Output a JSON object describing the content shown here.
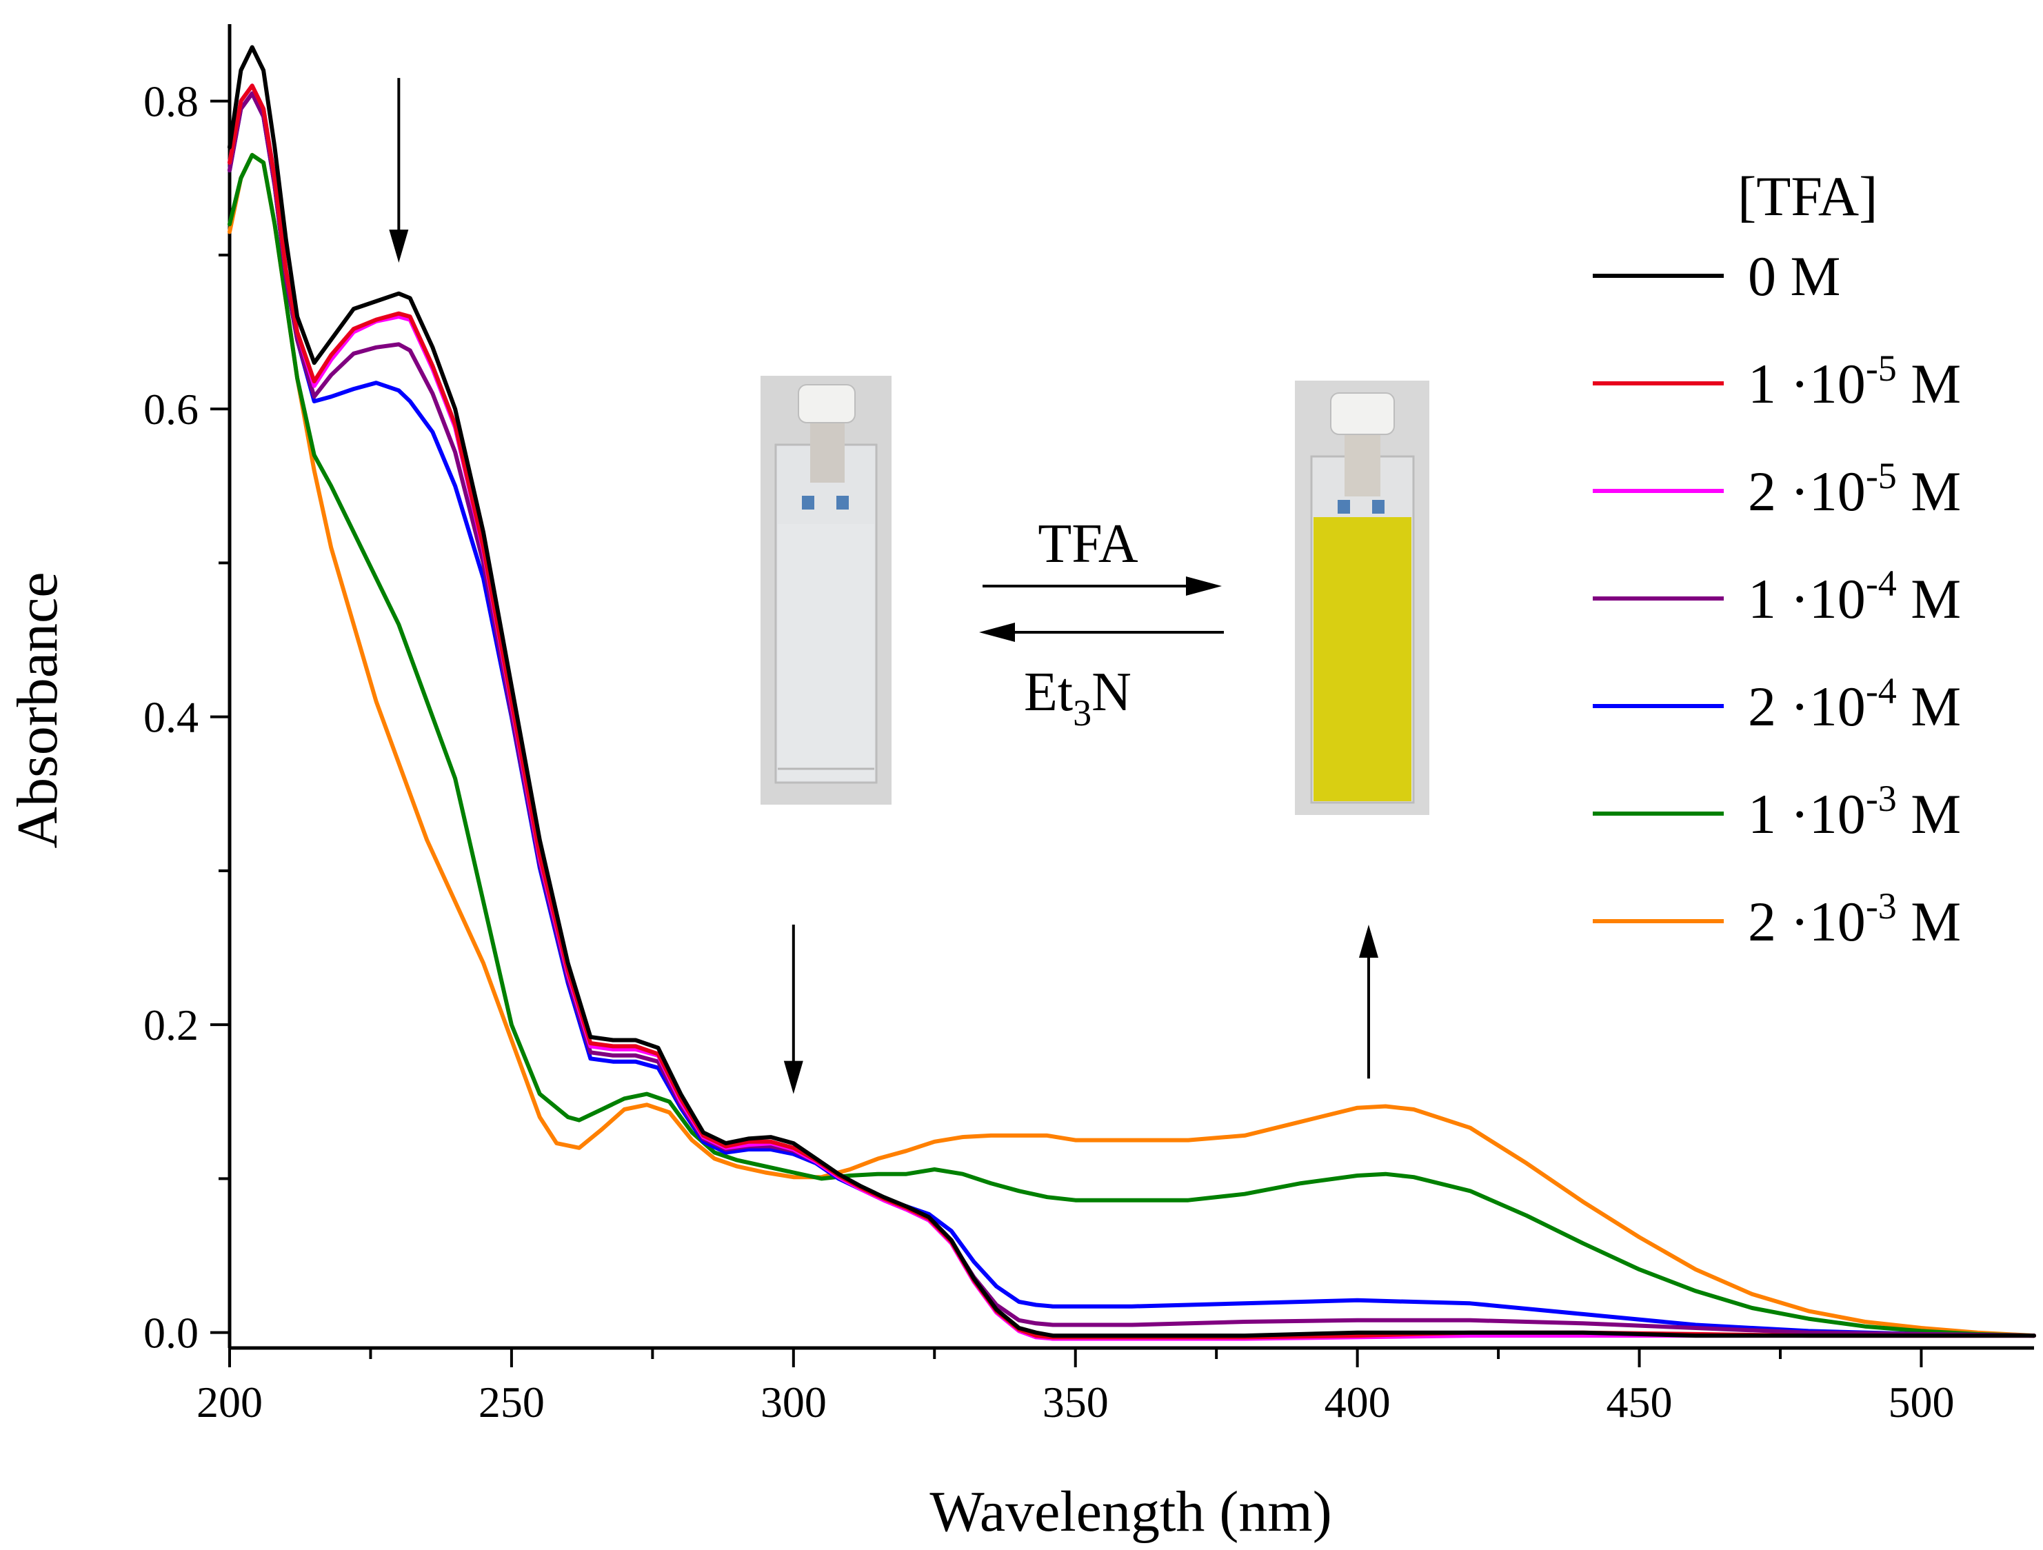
{
  "chart_data": {
    "type": "line",
    "title": "",
    "xlabel": "Wavelength (nm)",
    "ylabel": "Absorbance",
    "xlim": [
      200,
      520
    ],
    "ylim": [
      -0.01,
      0.85
    ],
    "xticks": [
      200,
      250,
      300,
      350,
      400,
      450,
      500
    ],
    "xtick_labels": [
      "200",
      "250",
      "300",
      "350",
      "400",
      "450",
      "500"
    ],
    "yticks": [
      0.0,
      0.2,
      0.4,
      0.6,
      0.8
    ],
    "ytick_labels": [
      "0.0",
      "0.2",
      "0.4",
      "0.6",
      "0.8"
    ],
    "legend": {
      "title": "[TFA]",
      "position": "right"
    },
    "series": [
      {
        "name": "0 M",
        "label_main": "0 M",
        "label_exp": "",
        "label_unit": "",
        "color": "#000000",
        "x": [
          200,
          202,
          204,
          206,
          208,
          210,
          212,
          215,
          218,
          222,
          226,
          230,
          232,
          236,
          240,
          245,
          250,
          255,
          260,
          264,
          268,
          272,
          276,
          280,
          284,
          288,
          292,
          296,
          300,
          304,
          308,
          312,
          316,
          320,
          324,
          328,
          332,
          336,
          340,
          343,
          346,
          350,
          360,
          380,
          400,
          420,
          440,
          460,
          480,
          500,
          520
        ],
        "y": [
          0.77,
          0.82,
          0.835,
          0.82,
          0.77,
          0.71,
          0.66,
          0.63,
          0.645,
          0.665,
          0.67,
          0.675,
          0.672,
          0.64,
          0.6,
          0.52,
          0.42,
          0.32,
          0.24,
          0.192,
          0.19,
          0.19,
          0.185,
          0.155,
          0.13,
          0.123,
          0.126,
          0.127,
          0.123,
          0.113,
          0.103,
          0.095,
          0.088,
          0.082,
          0.075,
          0.06,
          0.035,
          0.015,
          0.003,
          0.0,
          -0.002,
          -0.002,
          -0.002,
          -0.002,
          0.0,
          0.0,
          0.0,
          -0.002,
          -0.002,
          -0.002,
          -0.002
        ]
      },
      {
        "name": "1 ·10-5 M",
        "label_main": "1 ·10",
        "label_exp": "-5",
        "label_unit": " M",
        "color": "#e8001c",
        "x": [
          200,
          202,
          204,
          206,
          208,
          210,
          212,
          215,
          218,
          222,
          226,
          230,
          232,
          236,
          240,
          245,
          250,
          255,
          260,
          264,
          268,
          272,
          276,
          280,
          284,
          288,
          292,
          296,
          300,
          304,
          308,
          312,
          316,
          320,
          324,
          328,
          332,
          336,
          340,
          343,
          346,
          350,
          360,
          380,
          400,
          420,
          440,
          460,
          480,
          500,
          520
        ],
        "y": [
          0.76,
          0.8,
          0.81,
          0.795,
          0.75,
          0.69,
          0.65,
          0.618,
          0.635,
          0.652,
          0.658,
          0.662,
          0.66,
          0.628,
          0.59,
          0.51,
          0.41,
          0.31,
          0.235,
          0.188,
          0.186,
          0.186,
          0.181,
          0.152,
          0.128,
          0.121,
          0.124,
          0.124,
          0.12,
          0.112,
          0.102,
          0.094,
          0.087,
          0.081,
          0.074,
          0.059,
          0.034,
          0.014,
          0.002,
          -0.002,
          -0.003,
          -0.003,
          -0.003,
          -0.003,
          -0.002,
          0.0,
          0.0,
          -0.001,
          -0.002,
          -0.002,
          -0.002
        ]
      },
      {
        "name": "2 ·10-5 M",
        "label_main": "2 ·10",
        "label_exp": "-5",
        "label_unit": " M",
        "color": "#ff00ff",
        "x": [
          200,
          202,
          204,
          206,
          208,
          210,
          212,
          215,
          218,
          222,
          226,
          230,
          232,
          236,
          240,
          245,
          250,
          255,
          260,
          264,
          268,
          272,
          276,
          280,
          284,
          288,
          292,
          296,
          300,
          304,
          308,
          312,
          316,
          320,
          324,
          328,
          332,
          336,
          340,
          343,
          346,
          350,
          360,
          380,
          400,
          420,
          440,
          460,
          480,
          500,
          520
        ],
        "y": [
          0.76,
          0.8,
          0.81,
          0.795,
          0.75,
          0.69,
          0.65,
          0.615,
          0.632,
          0.65,
          0.657,
          0.66,
          0.658,
          0.626,
          0.588,
          0.508,
          0.408,
          0.308,
          0.233,
          0.186,
          0.184,
          0.184,
          0.18,
          0.15,
          0.127,
          0.12,
          0.122,
          0.123,
          0.119,
          0.111,
          0.101,
          0.093,
          0.086,
          0.08,
          0.073,
          0.058,
          0.033,
          0.013,
          0.001,
          -0.003,
          -0.004,
          -0.004,
          -0.004,
          -0.004,
          -0.003,
          -0.002,
          -0.002,
          -0.002,
          -0.002,
          -0.002,
          -0.002
        ]
      },
      {
        "name": "1 ·10-4 M",
        "label_main": "1 ·10",
        "label_exp": "-4",
        "label_unit": " M",
        "color": "#800080",
        "x": [
          200,
          202,
          204,
          206,
          208,
          210,
          212,
          215,
          218,
          222,
          226,
          230,
          232,
          236,
          240,
          245,
          250,
          255,
          260,
          264,
          268,
          272,
          276,
          280,
          284,
          288,
          292,
          296,
          300,
          304,
          308,
          312,
          316,
          320,
          324,
          328,
          332,
          336,
          340,
          343,
          346,
          350,
          360,
          380,
          400,
          420,
          440,
          460,
          480,
          500,
          520
        ],
        "y": [
          0.755,
          0.795,
          0.805,
          0.79,
          0.745,
          0.685,
          0.645,
          0.608,
          0.622,
          0.636,
          0.64,
          0.642,
          0.638,
          0.61,
          0.572,
          0.5,
          0.402,
          0.305,
          0.23,
          0.182,
          0.18,
          0.18,
          0.176,
          0.148,
          0.126,
          0.119,
          0.121,
          0.121,
          0.118,
          0.111,
          0.101,
          0.093,
          0.086,
          0.08,
          0.073,
          0.059,
          0.036,
          0.018,
          0.008,
          0.006,
          0.005,
          0.005,
          0.005,
          0.007,
          0.008,
          0.008,
          0.006,
          0.003,
          0.0,
          -0.001,
          -0.002
        ]
      },
      {
        "name": "2 ·10-4 M",
        "label_main": "2 ·10",
        "label_exp": "-4",
        "label_unit": " M",
        "color": "#0000ff",
        "x": [
          200,
          202,
          204,
          206,
          208,
          210,
          212,
          215,
          218,
          222,
          226,
          230,
          232,
          236,
          240,
          245,
          250,
          255,
          260,
          264,
          268,
          272,
          276,
          280,
          284,
          288,
          292,
          296,
          300,
          304,
          308,
          312,
          316,
          320,
          324,
          328,
          332,
          336,
          340,
          343,
          346,
          350,
          360,
          380,
          400,
          420,
          440,
          460,
          480,
          500,
          520
        ],
        "y": [
          0.755,
          0.795,
          0.805,
          0.79,
          0.745,
          0.685,
          0.645,
          0.605,
          0.608,
          0.613,
          0.617,
          0.612,
          0.605,
          0.585,
          0.55,
          0.49,
          0.4,
          0.302,
          0.227,
          0.178,
          0.176,
          0.176,
          0.172,
          0.146,
          0.124,
          0.117,
          0.119,
          0.119,
          0.116,
          0.11,
          0.1,
          0.093,
          0.087,
          0.082,
          0.077,
          0.066,
          0.046,
          0.03,
          0.02,
          0.018,
          0.017,
          0.017,
          0.017,
          0.019,
          0.021,
          0.019,
          0.012,
          0.005,
          0.001,
          -0.001,
          -0.002
        ]
      },
      {
        "name": "1 ·10-3 M",
        "label_main": "1 ·10",
        "label_exp": "-3",
        "label_unit": " M",
        "color": "#008000",
        "x": [
          200,
          202,
          204,
          206,
          208,
          210,
          212,
          215,
          218,
          222,
          226,
          230,
          235,
          240,
          245,
          250,
          255,
          260,
          262,
          266,
          270,
          274,
          278,
          282,
          286,
          290,
          295,
          300,
          305,
          310,
          315,
          320,
          325,
          330,
          335,
          340,
          345,
          350,
          355,
          360,
          370,
          380,
          390,
          400,
          405,
          410,
          420,
          430,
          440,
          450,
          460,
          470,
          480,
          490,
          500,
          510,
          520
        ],
        "y": [
          0.72,
          0.75,
          0.765,
          0.76,
          0.72,
          0.67,
          0.62,
          0.57,
          0.55,
          0.52,
          0.49,
          0.46,
          0.41,
          0.36,
          0.28,
          0.2,
          0.155,
          0.14,
          0.138,
          0.145,
          0.152,
          0.155,
          0.15,
          0.13,
          0.117,
          0.112,
          0.108,
          0.104,
          0.1,
          0.102,
          0.103,
          0.103,
          0.106,
          0.103,
          0.097,
          0.092,
          0.088,
          0.086,
          0.086,
          0.086,
          0.086,
          0.09,
          0.097,
          0.102,
          0.103,
          0.101,
          0.092,
          0.076,
          0.058,
          0.041,
          0.027,
          0.016,
          0.009,
          0.004,
          0.001,
          -0.001,
          -0.002
        ]
      },
      {
        "name": "2 ·10-3 M",
        "label_main": "2 ·10",
        "label_exp": "-3",
        "label_unit": " M",
        "color": "#ff8000",
        "x": [
          200,
          202,
          204,
          206,
          208,
          210,
          212,
          215,
          218,
          222,
          226,
          230,
          235,
          240,
          245,
          250,
          255,
          258,
          262,
          266,
          270,
          274,
          278,
          282,
          286,
          290,
          295,
          300,
          305,
          310,
          315,
          320,
          325,
          330,
          335,
          340,
          345,
          350,
          360,
          370,
          380,
          390,
          400,
          405,
          410,
          420,
          430,
          440,
          450,
          460,
          470,
          480,
          490,
          500,
          510,
          520
        ],
        "y": [
          0.715,
          0.75,
          0.765,
          0.76,
          0.72,
          0.67,
          0.62,
          0.56,
          0.51,
          0.46,
          0.41,
          0.37,
          0.32,
          0.28,
          0.24,
          0.19,
          0.14,
          0.123,
          0.12,
          0.132,
          0.145,
          0.148,
          0.143,
          0.125,
          0.113,
          0.108,
          0.104,
          0.101,
          0.101,
          0.106,
          0.113,
          0.118,
          0.124,
          0.127,
          0.128,
          0.128,
          0.128,
          0.125,
          0.125,
          0.125,
          0.128,
          0.137,
          0.146,
          0.147,
          0.145,
          0.133,
          0.11,
          0.085,
          0.062,
          0.041,
          0.025,
          0.014,
          0.007,
          0.003,
          0.0,
          -0.002
        ]
      }
    ],
    "annotations": {
      "arrows": [
        {
          "x": 230,
          "y_from": 0.815,
          "y_to": 0.695,
          "direction": "down"
        },
        {
          "x": 300,
          "y_from": 0.265,
          "y_to": 0.155,
          "direction": "down"
        },
        {
          "x": 402,
          "y_from": 0.165,
          "y_to": 0.265,
          "direction": "up"
        }
      ]
    }
  },
  "inset": {
    "forward_label": "TFA",
    "reverse_label_main": "Et",
    "reverse_label_sub": "3",
    "reverse_label_tail": "N",
    "left_vial": {
      "description": "colorless",
      "liquid_color": "#e6e8ea"
    },
    "right_vial": {
      "description": "yellow",
      "liquid_color": "#d9cf12"
    }
  }
}
